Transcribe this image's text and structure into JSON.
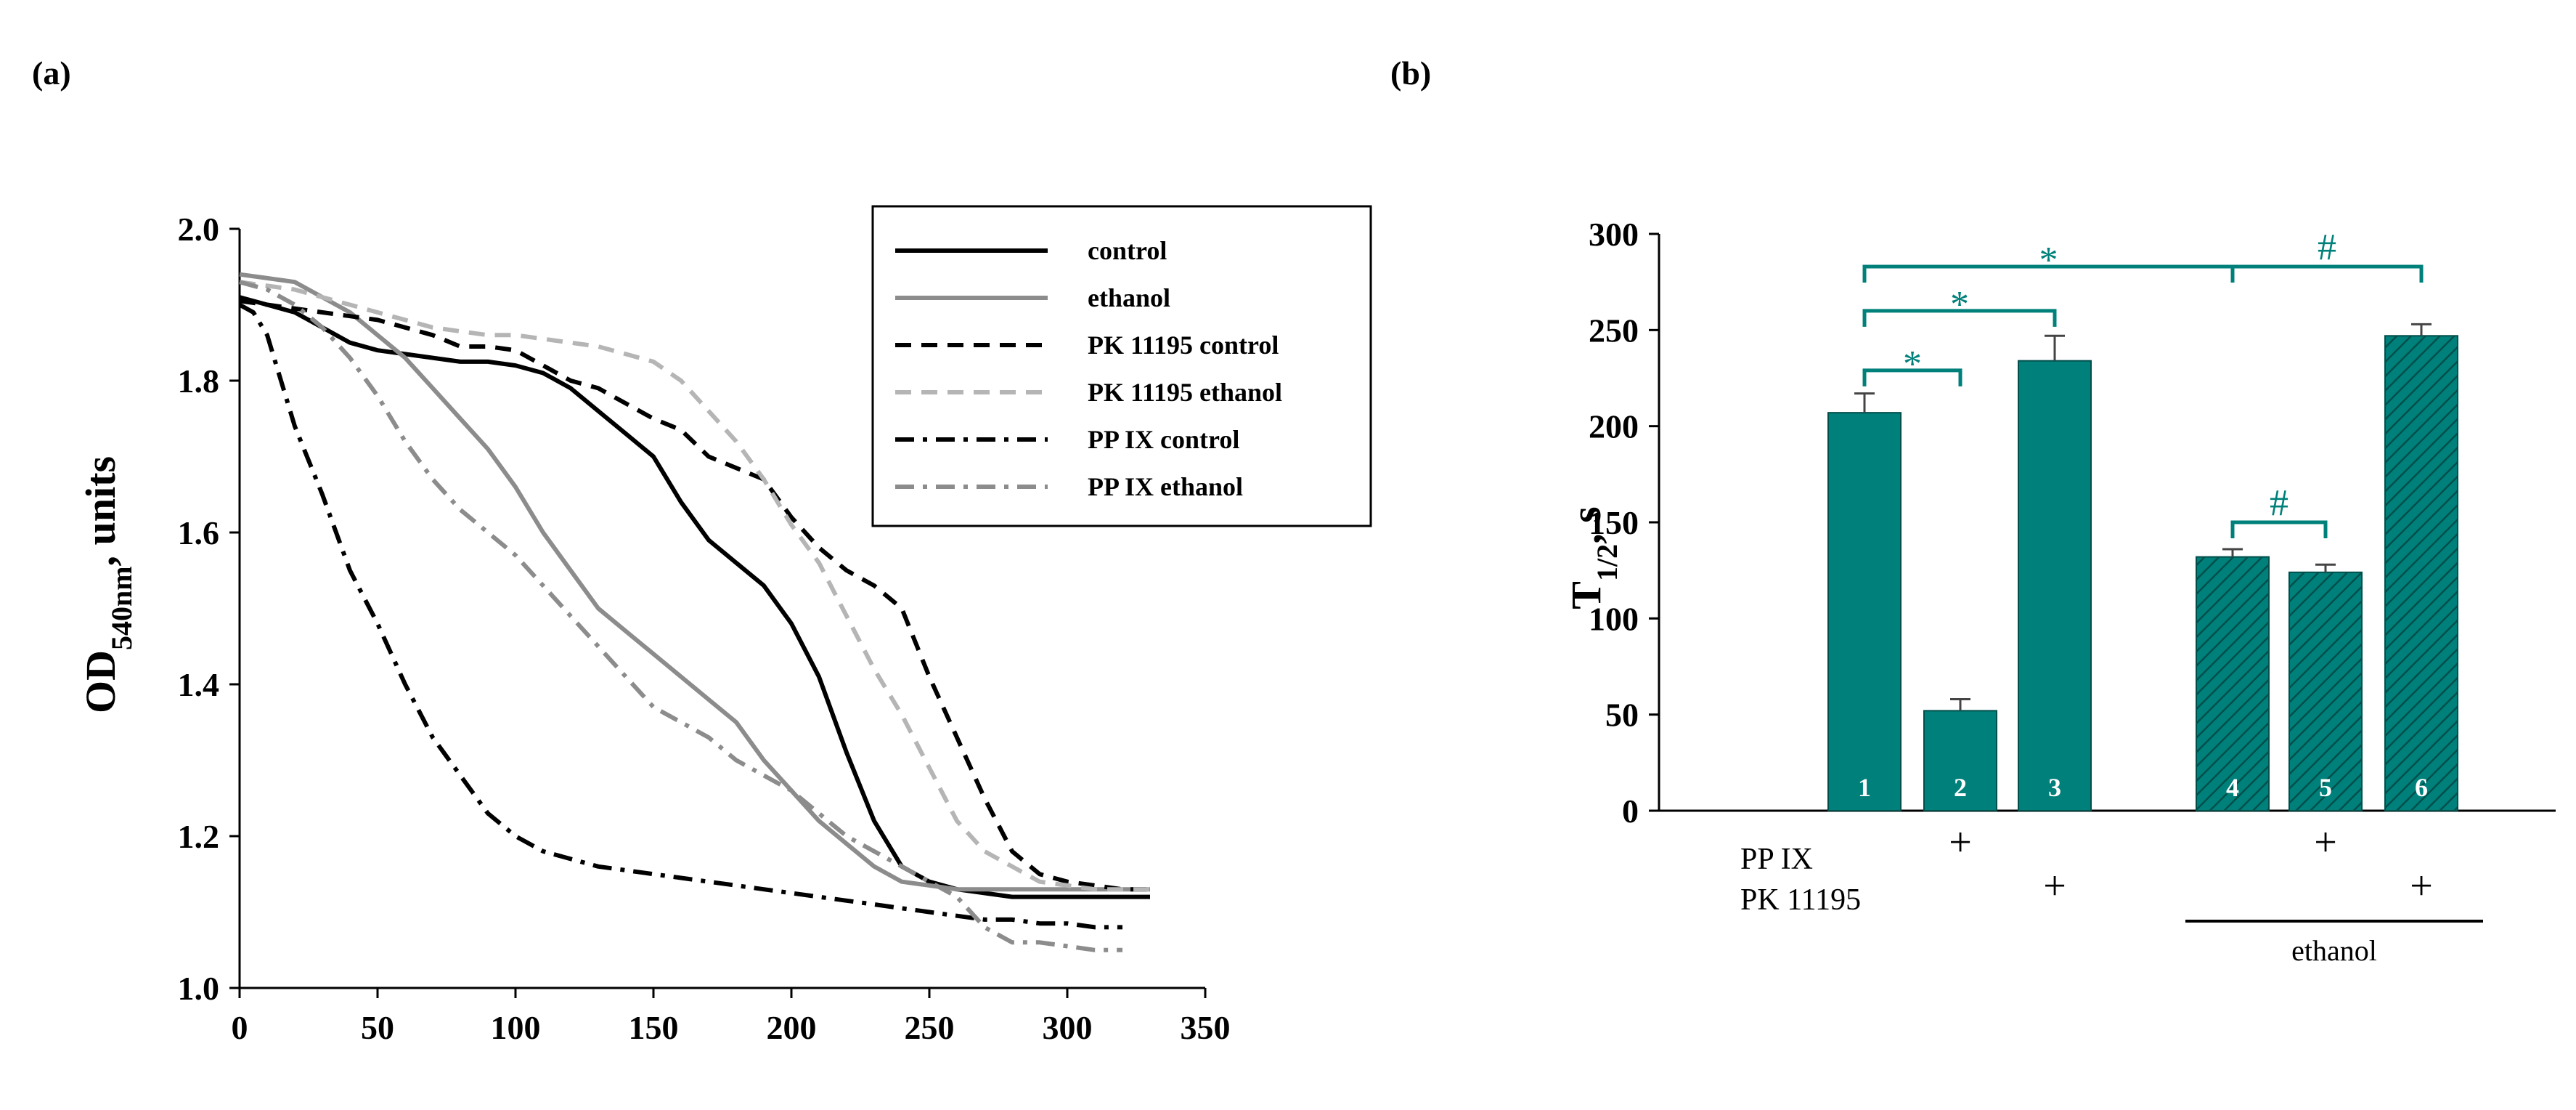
{
  "colors": {
    "black": "#000000",
    "gray": "#8c8c8c",
    "light_gray": "#b5b5b5",
    "teal": "#00807a",
    "teal_hatch": "#005c57"
  },
  "panel_a": {
    "label": "(a)",
    "ylabel_main": "OD",
    "ylabel_sub": "540nm",
    "ylabel_rest": ", units"
  },
  "panel_b": {
    "label": "(b)",
    "ylabel_main": "T",
    "ylabel_sub": "1/2",
    "ylabel_rest": ", s",
    "row_labels": [
      "PP IX",
      "PK 11195"
    ],
    "plus": "+",
    "ethanol_label": "ethanol",
    "sig_star": "*",
    "sig_hash": "#"
  },
  "chart_data": [
    {
      "type": "line",
      "title": "",
      "xlabel": "",
      "ylabel": "OD540nm, units",
      "xlim": [
        0,
        350
      ],
      "ylim": [
        1.0,
        2.0
      ],
      "xticks": [
        "0",
        "50",
        "100",
        "150",
        "200",
        "250",
        "300",
        "350"
      ],
      "yticks": [
        "1.0",
        "1.2",
        "1.4",
        "1.6",
        "1.8",
        "2.0"
      ],
      "legend_position": "top-right",
      "series": [
        {
          "name": "control",
          "color": "#000000",
          "dash": "solid",
          "x": [
            0,
            10,
            20,
            30,
            40,
            50,
            60,
            70,
            80,
            90,
            100,
            110,
            120,
            130,
            140,
            150,
            160,
            170,
            180,
            190,
            200,
            210,
            220,
            230,
            240,
            250,
            260,
            270,
            280,
            290,
            300,
            310,
            320,
            330
          ],
          "y": [
            1.91,
            1.9,
            1.89,
            1.87,
            1.85,
            1.84,
            1.835,
            1.83,
            1.825,
            1.825,
            1.82,
            1.81,
            1.79,
            1.76,
            1.73,
            1.7,
            1.64,
            1.59,
            1.56,
            1.53,
            1.48,
            1.41,
            1.31,
            1.22,
            1.16,
            1.14,
            1.13,
            1.125,
            1.12,
            1.12,
            1.12,
            1.12,
            1.12,
            1.12
          ]
        },
        {
          "name": "ethanol",
          "color": "#8c8c8c",
          "dash": "solid",
          "x": [
            0,
            10,
            20,
            30,
            40,
            50,
            60,
            70,
            80,
            90,
            100,
            110,
            120,
            130,
            140,
            150,
            160,
            170,
            180,
            190,
            200,
            210,
            220,
            230,
            240,
            250,
            260,
            270,
            280,
            290,
            300,
            310,
            320,
            330
          ],
          "y": [
            1.94,
            1.935,
            1.93,
            1.91,
            1.89,
            1.86,
            1.83,
            1.79,
            1.75,
            1.71,
            1.66,
            1.6,
            1.55,
            1.5,
            1.47,
            1.44,
            1.41,
            1.38,
            1.35,
            1.3,
            1.26,
            1.22,
            1.19,
            1.16,
            1.14,
            1.135,
            1.13,
            1.13,
            1.13,
            1.13,
            1.13,
            1.13,
            1.13,
            1.13
          ]
        },
        {
          "name": "PK 11195 control",
          "color": "#000000",
          "dash": "dashed",
          "x": [
            0,
            10,
            20,
            30,
            40,
            50,
            60,
            70,
            80,
            90,
            100,
            110,
            120,
            130,
            140,
            150,
            160,
            170,
            180,
            190,
            200,
            210,
            220,
            230,
            240,
            250,
            260,
            270,
            280,
            290,
            300,
            310,
            320,
            330
          ],
          "y": [
            1.905,
            1.9,
            1.895,
            1.89,
            1.885,
            1.88,
            1.87,
            1.86,
            1.845,
            1.845,
            1.84,
            1.82,
            1.8,
            1.79,
            1.77,
            1.75,
            1.735,
            1.7,
            1.685,
            1.67,
            1.62,
            1.58,
            1.55,
            1.53,
            1.5,
            1.41,
            1.33,
            1.25,
            1.18,
            1.15,
            1.14,
            1.135,
            1.13,
            1.13
          ]
        },
        {
          "name": "PK 11195 ethanol",
          "color": "#b5b5b5",
          "dash": "dashed",
          "x": [
            0,
            10,
            20,
            30,
            40,
            50,
            60,
            70,
            80,
            90,
            100,
            110,
            120,
            130,
            140,
            150,
            160,
            170,
            180,
            190,
            200,
            210,
            220,
            230,
            240,
            250,
            260,
            270,
            280,
            290,
            300,
            310,
            320,
            330
          ],
          "y": [
            1.93,
            1.925,
            1.92,
            1.91,
            1.9,
            1.89,
            1.88,
            1.87,
            1.865,
            1.86,
            1.86,
            1.855,
            1.85,
            1.845,
            1.835,
            1.825,
            1.8,
            1.76,
            1.72,
            1.67,
            1.61,
            1.56,
            1.49,
            1.42,
            1.36,
            1.29,
            1.22,
            1.18,
            1.16,
            1.14,
            1.135,
            1.13,
            1.13,
            1.13
          ]
        },
        {
          "name": "PP IX control",
          "color": "#000000",
          "dash": "dashdot",
          "x": [
            0,
            5,
            10,
            15,
            20,
            30,
            40,
            50,
            60,
            70,
            80,
            90,
            100,
            110,
            120,
            130,
            140,
            150,
            160,
            170,
            180,
            190,
            200,
            210,
            220,
            230,
            240,
            250,
            260,
            270,
            280,
            290,
            300,
            310,
            320
          ],
          "y": [
            1.9,
            1.89,
            1.86,
            1.8,
            1.74,
            1.65,
            1.55,
            1.48,
            1.4,
            1.33,
            1.28,
            1.23,
            1.2,
            1.18,
            1.17,
            1.16,
            1.155,
            1.15,
            1.145,
            1.14,
            1.135,
            1.13,
            1.125,
            1.12,
            1.115,
            1.11,
            1.105,
            1.1,
            1.095,
            1.09,
            1.09,
            1.085,
            1.085,
            1.08,
            1.08
          ]
        },
        {
          "name": "PP IX ethanol",
          "color": "#8c8c8c",
          "dash": "dashdot",
          "x": [
            0,
            10,
            20,
            30,
            40,
            50,
            60,
            70,
            80,
            90,
            100,
            110,
            120,
            130,
            140,
            150,
            160,
            170,
            180,
            190,
            200,
            210,
            220,
            230,
            240,
            250,
            260,
            270,
            280,
            290,
            300,
            310,
            320
          ],
          "y": [
            1.93,
            1.92,
            1.9,
            1.87,
            1.83,
            1.78,
            1.72,
            1.67,
            1.63,
            1.6,
            1.57,
            1.53,
            1.49,
            1.45,
            1.41,
            1.37,
            1.35,
            1.33,
            1.3,
            1.28,
            1.26,
            1.23,
            1.2,
            1.18,
            1.16,
            1.14,
            1.12,
            1.08,
            1.06,
            1.06,
            1.055,
            1.05,
            1.05
          ]
        }
      ]
    },
    {
      "type": "bar",
      "title": "",
      "xlabel": "",
      "ylabel": "T1/2, s",
      "ylim": [
        0,
        300
      ],
      "yticks": [
        "0",
        "50",
        "100",
        "150",
        "200",
        "250",
        "300"
      ],
      "categories": [
        "1",
        "2",
        "3",
        "4",
        "5",
        "6"
      ],
      "values": [
        207,
        52,
        234,
        132,
        124,
        247
      ],
      "errors": [
        10,
        6,
        13,
        4,
        4,
        6
      ],
      "hatched": [
        false,
        false,
        false,
        true,
        true,
        true
      ],
      "pp_ix": [
        false,
        true,
        false,
        false,
        true,
        false
      ],
      "pk_11195": [
        false,
        false,
        true,
        false,
        false,
        true
      ],
      "ethanol": [
        false,
        false,
        false,
        true,
        true,
        true
      ],
      "significance": [
        {
          "from": 1,
          "to": 2,
          "symbol": "*"
        },
        {
          "from": 1,
          "to": 3,
          "symbol": "*"
        },
        {
          "from": 1,
          "to": 4,
          "symbol": "*"
        },
        {
          "from": 4,
          "to": 5,
          "symbol": "#"
        },
        {
          "from": 4,
          "to": 6,
          "symbol": "#"
        }
      ]
    }
  ]
}
